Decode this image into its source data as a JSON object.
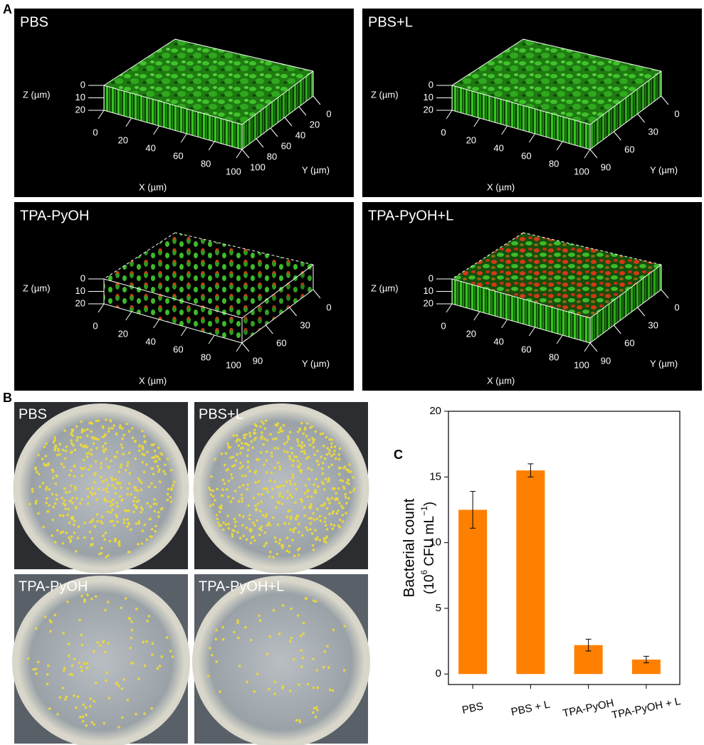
{
  "panel_a": {
    "label": "A",
    "axis_z": "Z (µm)",
    "axis_x": "X (µm)",
    "axis_y": "Y (µm)",
    "plots": [
      {
        "title": "PBS",
        "z_ticks": [
          0,
          10,
          20
        ],
        "x_ticks": [
          0,
          20,
          40,
          60,
          80,
          100
        ],
        "y_ticks": [
          0,
          20,
          40,
          60,
          80,
          100
        ]
      },
      {
        "title": "PBS+L",
        "z_ticks": [
          0,
          10,
          20
        ],
        "x_ticks": [
          0,
          20,
          40,
          60,
          80,
          100
        ],
        "y_ticks": [
          0,
          30,
          60,
          90
        ]
      },
      {
        "title": "TPA-PyOH",
        "z_ticks": [
          0,
          10,
          20
        ],
        "x_ticks": [
          0,
          20,
          40,
          60,
          80,
          100
        ],
        "y_ticks": [
          0,
          30,
          60,
          90
        ]
      },
      {
        "title": "TPA-PyOH+L",
        "z_ticks": [
          0,
          10,
          20
        ],
        "x_ticks": [
          0,
          20,
          40,
          60,
          80,
          100
        ],
        "y_ticks": [
          0,
          30,
          60,
          90
        ]
      }
    ]
  },
  "panel_b": {
    "label": "B",
    "plates": [
      "PBS",
      "PBS+L",
      "TPA-PyOH",
      "TPA-PyOH+L"
    ]
  },
  "chart_data": {
    "type": "bar",
    "label": "C",
    "y_label": "Bacterial count",
    "y_unit": [
      "(10",
      "6",
      " CFU mL",
      "−1",
      ")"
    ],
    "categories": [
      "PBS",
      "PBS + L",
      "TPA-PyOH",
      "TPA-PyOH + L"
    ],
    "values": [
      12.5,
      15.5,
      2.2,
      1.1
    ],
    "errors": [
      1.4,
      0.5,
      0.45,
      0.25
    ],
    "color": "#ff8000",
    "ylim": [
      -0.8,
      20
    ],
    "yticks": [
      0,
      5,
      10,
      15,
      20
    ]
  }
}
